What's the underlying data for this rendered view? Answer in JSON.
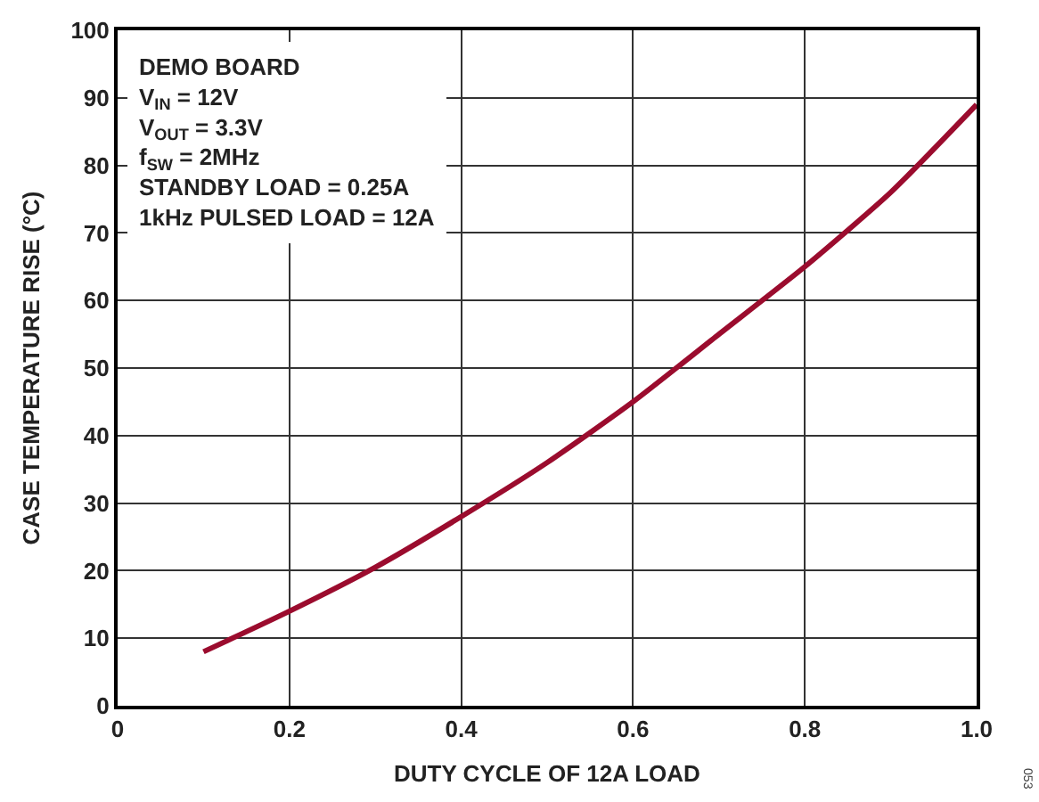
{
  "chart_data": {
    "type": "line",
    "xlabel": "DUTY CYCLE OF 12A LOAD",
    "ylabel": "CASE TEMPERATURE RISE (°C)",
    "annotations": [
      "DEMO BOARD",
      "V$_{IN}$ = 12V",
      "V$_{OUT}$ = 3.3V",
      "f$_{SW}$ = 2MHz",
      "STANDBY LOAD = 0.25A",
      "1kHz PULSED LOAD = 12A",
      "053"
    ],
    "x": [
      0.1,
      0.2,
      0.3,
      0.4,
      0.5,
      0.6,
      0.7,
      0.8,
      0.9,
      1.0
    ],
    "series": [
      {
        "color": "#9b0c2e",
        "values": [
          8,
          14,
          20.5,
          28,
          36,
          45,
          55,
          65,
          76,
          89
        ]
      }
    ],
    "xlim": [
      0,
      1
    ],
    "xticks": [
      0,
      0.2,
      0.4,
      0.6,
      0.8,
      {
        "value": 1,
        "label": "1.0"
      }
    ],
    "ylim": [
      0,
      100
    ],
    "yticks": [
      0,
      10,
      20,
      30,
      40,
      50,
      60,
      70,
      80,
      90,
      100
    ],
    "grid": true,
    "marker": "none",
    "line_style": "solid"
  }
}
